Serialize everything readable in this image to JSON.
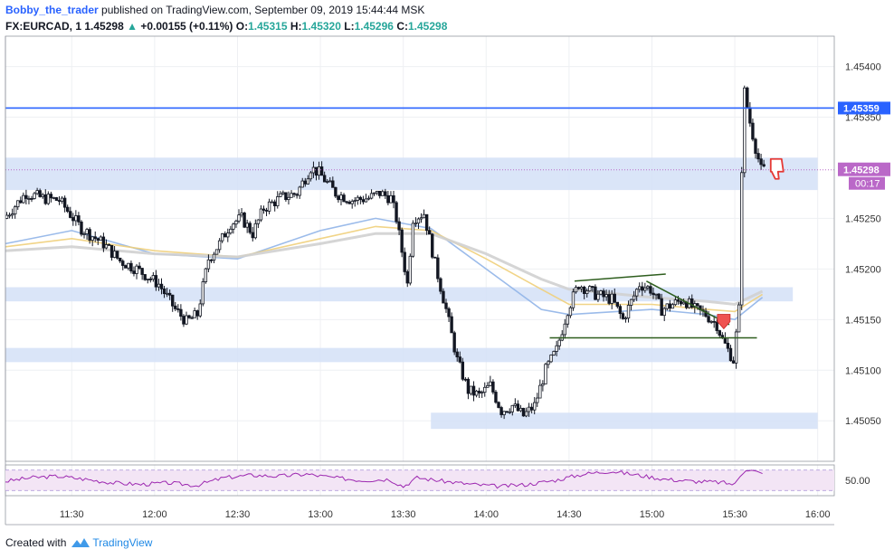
{
  "header": {
    "author": "Bobby_the_trader",
    "published": "published on TradingView.com, September 09, 2019 15:44:44 MSK",
    "symbol": "FX:EURCAD, 1",
    "last": "1.45298",
    "change": "+0.00155 (+0.11%)",
    "o_label": "O:",
    "o_value": "1.45315",
    "h_label": "H:",
    "h_value": "1.45320",
    "l_label": "L:",
    "l_value": "1.45296",
    "c_label": "C:",
    "c_value": "1.45298"
  },
  "footer": {
    "created_with": "Created with",
    "brand": "TradingView"
  },
  "colors": {
    "up_candle": "#ffffff",
    "down_candle": "#131722",
    "zone": "#d4e1f7",
    "resistance": "#2962ff",
    "price_badge": "#ba68c8",
    "trendline": "#2e5e1e",
    "rsi": "#9c27b0",
    "ma_fast": "#90b4e8",
    "ma_mid": "#f0cf7a",
    "ma_slow": "#d0d0d0"
  },
  "chart_data": {
    "type": "candlestick",
    "x_ticks": [
      "11:30",
      "12:00",
      "12:30",
      "13:00",
      "13:30",
      "14:00",
      "14:30",
      "15:00",
      "15:30",
      "16:00"
    ],
    "y_ticks": [
      "1.45050",
      "1.45100",
      "1.45150",
      "1.45200",
      "1.45250",
      "1.45350",
      "1.45400"
    ],
    "ylim": [
      1.4501,
      1.4543
    ],
    "resistance_level": {
      "value": 1.45359,
      "label": "1.45359"
    },
    "current_price": {
      "value": 1.45298,
      "label": "1.45298",
      "countdown": "00:17"
    },
    "zones": [
      {
        "low": 1.45278,
        "high": 1.4531,
        "from": "11:06",
        "to": "16:00"
      },
      {
        "low": 1.45168,
        "high": 1.45182,
        "from": "11:06",
        "to": "15:51"
      },
      {
        "low": 1.45108,
        "high": 1.45122,
        "from": "11:06",
        "to": "15:28"
      },
      {
        "low": 1.45042,
        "high": 1.45058,
        "from": "13:40",
        "to": "16:00"
      }
    ],
    "price_path": [
      [
        "11:06",
        1.4525
      ],
      [
        "11:14",
        1.45275
      ],
      [
        "11:20",
        1.4527
      ],
      [
        "11:26",
        1.45268
      ],
      [
        "11:34",
        1.4524
      ],
      [
        "11:42",
        1.45225
      ],
      [
        "11:48",
        1.45208
      ],
      [
        "11:54",
        1.452
      ],
      [
        "12:02",
        1.45185
      ],
      [
        "12:08",
        1.4516
      ],
      [
        "12:12",
        1.45148
      ],
      [
        "12:16",
        1.45155
      ],
      [
        "12:20",
        1.4521
      ],
      [
        "12:24",
        1.45225
      ],
      [
        "12:28",
        1.45245
      ],
      [
        "12:32",
        1.4525
      ],
      [
        "12:36",
        1.45235
      ],
      [
        "12:40",
        1.4526
      ],
      [
        "12:46",
        1.4527
      ],
      [
        "12:52",
        1.45275
      ],
      [
        "12:57",
        1.453
      ],
      [
        "13:00",
        1.45295
      ],
      [
        "13:06",
        1.45275
      ],
      [
        "13:12",
        1.45268
      ],
      [
        "13:18",
        1.4527
      ],
      [
        "13:22",
        1.45275
      ],
      [
        "13:26",
        1.4527
      ],
      [
        "13:28",
        1.4525
      ],
      [
        "13:32",
        1.45185
      ],
      [
        "13:34",
        1.4525
      ],
      [
        "13:38",
        1.45255
      ],
      [
        "13:42",
        1.45205
      ],
      [
        "13:46",
        1.4516
      ],
      [
        "13:50",
        1.4511
      ],
      [
        "13:54",
        1.4508
      ],
      [
        "13:58",
        1.45075
      ],
      [
        "14:02",
        1.45085
      ],
      [
        "14:06",
        1.4506
      ],
      [
        "14:10",
        1.45065
      ],
      [
        "14:14",
        1.45055
      ],
      [
        "14:18",
        1.45065
      ],
      [
        "14:22",
        1.451
      ],
      [
        "14:26",
        1.4512
      ],
      [
        "14:30",
        1.4516
      ],
      [
        "14:34",
        1.45185
      ],
      [
        "14:40",
        1.45175
      ],
      [
        "14:46",
        1.4517
      ],
      [
        "14:50",
        1.4515
      ],
      [
        "14:56",
        1.45185
      ],
      [
        "15:00",
        1.4518
      ],
      [
        "15:04",
        1.4516
      ],
      [
        "15:08",
        1.45165
      ],
      [
        "15:12",
        1.4517
      ],
      [
        "15:16",
        1.4516
      ],
      [
        "15:20",
        1.45155
      ],
      [
        "15:24",
        1.45145
      ],
      [
        "15:26",
        1.4513
      ],
      [
        "15:28",
        1.4512
      ],
      [
        "15:30",
        1.4511
      ],
      [
        "15:32",
        1.4516
      ],
      [
        "15:33",
        1.453
      ],
      [
        "15:34",
        1.45375
      ],
      [
        "15:36",
        1.45345
      ],
      [
        "15:38",
        1.4532
      ],
      [
        "15:40",
        1.45298
      ]
    ],
    "moving_averages": [
      {
        "values": [
          [
            "11:06",
            1.45225
          ],
          [
            "11:30",
            1.45238
          ],
          [
            "12:00",
            1.45215
          ],
          [
            "12:30",
            1.4521
          ],
          [
            "13:00",
            1.45238
          ],
          [
            "13:20",
            1.4525
          ],
          [
            "13:40",
            1.4524
          ],
          [
            "14:00",
            1.452
          ],
          [
            "14:20",
            1.4516
          ],
          [
            "14:30",
            1.45155
          ],
          [
            "15:00",
            1.4516
          ],
          [
            "15:20",
            1.45155
          ],
          [
            "15:30",
            1.4515
          ],
          [
            "15:40",
            1.45172
          ]
        ]
      },
      {
        "values": [
          [
            "11:06",
            1.45222
          ],
          [
            "11:30",
            1.4523
          ],
          [
            "12:00",
            1.45218
          ],
          [
            "12:30",
            1.45212
          ],
          [
            "13:00",
            1.4523
          ],
          [
            "13:20",
            1.45242
          ],
          [
            "13:40",
            1.45238
          ],
          [
            "14:00",
            1.4521
          ],
          [
            "14:20",
            1.4518
          ],
          [
            "14:30",
            1.45165
          ],
          [
            "15:00",
            1.45165
          ],
          [
            "15:20",
            1.4516
          ],
          [
            "15:30",
            1.45158
          ],
          [
            "15:40",
            1.45175
          ]
        ]
      },
      {
        "values": [
          [
            "11:06",
            1.45218
          ],
          [
            "11:30",
            1.45222
          ],
          [
            "12:00",
            1.45215
          ],
          [
            "12:30",
            1.45212
          ],
          [
            "13:00",
            1.45225
          ],
          [
            "13:20",
            1.45235
          ],
          [
            "13:40",
            1.45235
          ],
          [
            "14:00",
            1.45215
          ],
          [
            "14:20",
            1.4519
          ],
          [
            "14:30",
            1.4518
          ],
          [
            "15:00",
            1.45172
          ],
          [
            "15:20",
            1.45168
          ],
          [
            "15:30",
            1.45165
          ],
          [
            "15:40",
            1.45178
          ]
        ]
      }
    ],
    "triangle_lines": [
      {
        "from": [
          "14:32",
          1.45188
        ],
        "to": [
          "15:05",
          1.45195
        ]
      },
      {
        "from": [
          "14:58",
          1.45188
        ],
        "to": [
          "15:28",
          1.45145
        ]
      },
      {
        "from": [
          "14:23",
          1.45132
        ],
        "to": [
          "15:38",
          1.45132
        ]
      }
    ],
    "rsi": {
      "y_tick": "50.00",
      "ylim": [
        20,
        80
      ],
      "bands": [
        30,
        70
      ],
      "x": [
        "11:06",
        "11:15",
        "11:25",
        "11:35",
        "11:45",
        "11:55",
        "12:05",
        "12:15",
        "12:25",
        "12:35",
        "12:45",
        "12:55",
        "13:05",
        "13:15",
        "13:25",
        "13:30",
        "13:35",
        "13:45",
        "13:55",
        "14:05",
        "14:15",
        "14:25",
        "14:35",
        "14:45",
        "14:55",
        "15:05",
        "15:15",
        "15:25",
        "15:30",
        "15:32",
        "15:34",
        "15:38",
        "15:40"
      ],
      "values": [
        48,
        55,
        58,
        52,
        45,
        42,
        45,
        40,
        55,
        60,
        58,
        62,
        55,
        50,
        52,
        38,
        55,
        48,
        42,
        38,
        42,
        50,
        62,
        68,
        60,
        52,
        48,
        46,
        42,
        60,
        72,
        66,
        62
      ]
    }
  }
}
